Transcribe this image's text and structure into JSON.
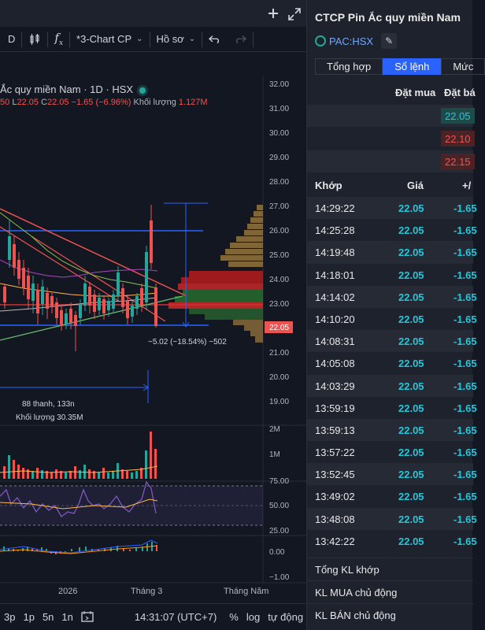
{
  "toolbar": {
    "interval": "D",
    "layout_label": "*3-Chart CP",
    "profile_label": "Hồ sơ"
  },
  "chart": {
    "title": "Ắc quy miền Nam · 1D · HSX",
    "ohlc": {
      "o_tail": "50",
      "l_label": "L",
      "l_value": "22.05",
      "c_label": "C",
      "c_value": "22.05",
      "change": "−1.65 (−6.96%)",
      "volume_label": "Khối lượng",
      "volume_value": "1.127M"
    },
    "price_axis": [
      "32.00",
      "31.00",
      "30.00",
      "29.00",
      "28.00",
      "27.00",
      "26.00",
      "25.00",
      "24.00",
      "23.00",
      "22.05",
      "21.00",
      "20.00",
      "19.00"
    ],
    "current_price": "22.05",
    "measure_label": "−5.02 (−18.54%) −502",
    "range_label_1": "88 thanh, 133n",
    "range_label_2": "Khối lượng 30.35M",
    "volume_axis": [
      "2M",
      "1M"
    ],
    "rsi_axis": [
      "75.00",
      "50.00",
      "25.00"
    ],
    "macd_axis": [
      "0.00",
      "−1.00"
    ],
    "time_axis": [
      "2026",
      "Tháng 3",
      "Tháng Năm"
    ]
  },
  "bottom_bar": {
    "ranges": [
      "3p",
      "1p",
      "5n",
      "1n"
    ],
    "clock": "14:31:07 (UTC+7)",
    "percent": "%",
    "log": "log",
    "auto": "tự động"
  },
  "panel": {
    "company_name": "CTCP Pin Ắc quy miền Nam",
    "ticker": "PAC:HSX",
    "tabs": [
      "Tổng hợp",
      "Sổ lệnh",
      "Mức"
    ],
    "orderbook_header": {
      "buy": "Đặt mua",
      "sell": "Đặt bá"
    },
    "orderbook_sell": [
      "22.05",
      "22.10",
      "22.15"
    ],
    "match_header": {
      "time": "Khớp",
      "price": "Giá",
      "change": "+/"
    },
    "matches": [
      {
        "time": "14:29:22",
        "price": "22.05",
        "change": "-1.65"
      },
      {
        "time": "14:25:28",
        "price": "22.05",
        "change": "-1.65"
      },
      {
        "time": "14:19:48",
        "price": "22.05",
        "change": "-1.65"
      },
      {
        "time": "14:18:01",
        "price": "22.05",
        "change": "-1.65"
      },
      {
        "time": "14:14:02",
        "price": "22.05",
        "change": "-1.65"
      },
      {
        "time": "14:10:20",
        "price": "22.05",
        "change": "-1.65"
      },
      {
        "time": "14:08:31",
        "price": "22.05",
        "change": "-1.65"
      },
      {
        "time": "14:05:08",
        "price": "22.05",
        "change": "-1.65"
      },
      {
        "time": "14:03:29",
        "price": "22.05",
        "change": "-1.65"
      },
      {
        "time": "13:59:19",
        "price": "22.05",
        "change": "-1.65"
      },
      {
        "time": "13:59:13",
        "price": "22.05",
        "change": "-1.65"
      },
      {
        "time": "13:57:22",
        "price": "22.05",
        "change": "-1.65"
      },
      {
        "time": "13:52:45",
        "price": "22.05",
        "change": "-1.65"
      },
      {
        "time": "13:49:02",
        "price": "22.05",
        "change": "-1.65"
      },
      {
        "time": "13:48:08",
        "price": "22.05",
        "change": "-1.65"
      },
      {
        "time": "13:42:22",
        "price": "22.05",
        "change": "-1.65"
      }
    ],
    "summary": [
      "Tổng KL khớp",
      "KL MUA chủ động",
      "KL BÁN chủ động"
    ]
  },
  "colors": {
    "up": "#26a69a",
    "down": "#ef5350",
    "accent": "#2962ff",
    "cyan": "#26c6da"
  }
}
